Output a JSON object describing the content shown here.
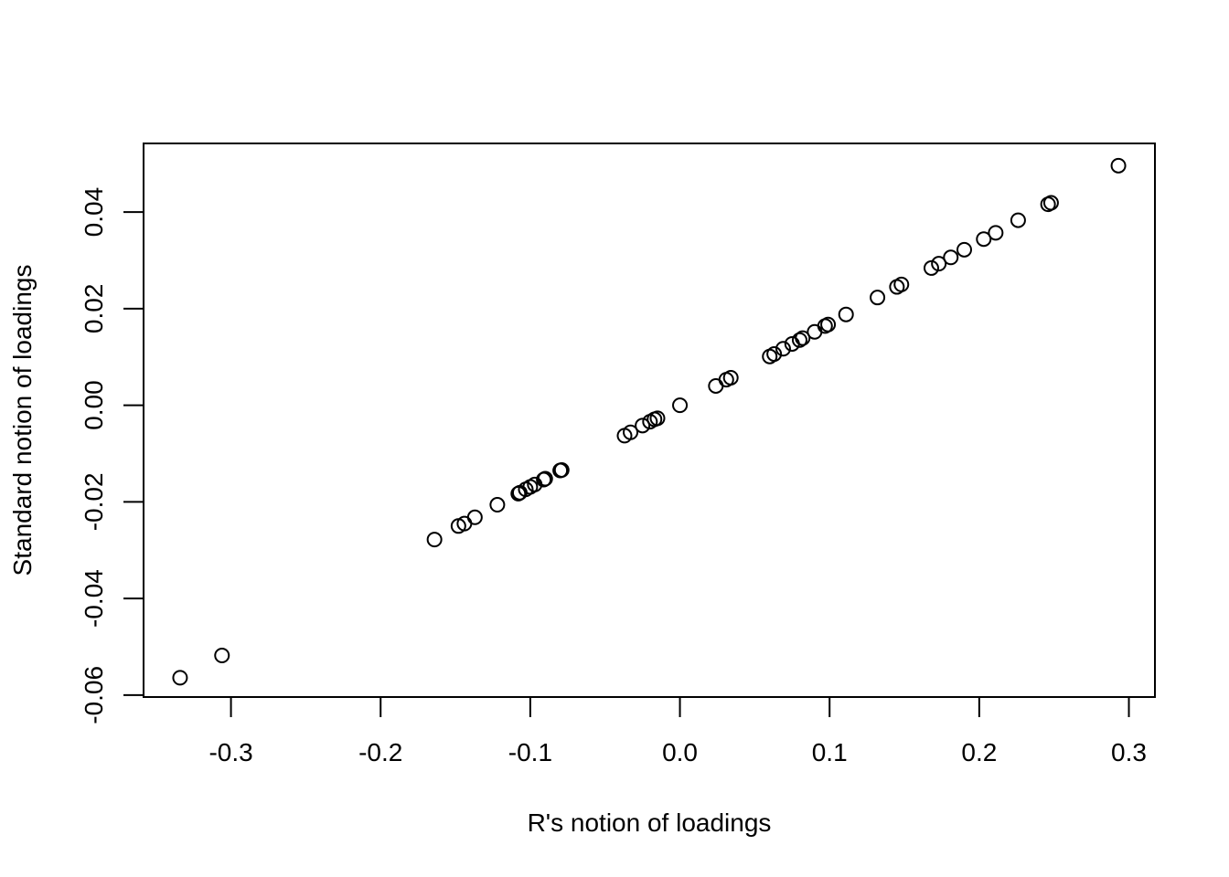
{
  "chart_data": {
    "type": "scatter",
    "title": "",
    "xlabel": "R's notion of loadings",
    "ylabel": "Standard notion of loadings",
    "xlim": [
      -0.3584,
      0.3174
    ],
    "ylim": [
      -0.0604,
      0.0542
    ],
    "x_ticks": [
      -0.3,
      -0.2,
      -0.1,
      0.0,
      0.1,
      0.2,
      0.3
    ],
    "x_tick_labels": [
      "-0.3",
      "-0.2",
      "-0.1",
      "0.0",
      "0.1",
      "0.2",
      "0.3"
    ],
    "y_ticks": [
      -0.06,
      -0.04,
      -0.02,
      0.0,
      0.02,
      0.04
    ],
    "y_tick_labels": [
      "-0.06",
      "-0.04",
      "-0.02",
      "0.00",
      "0.02",
      "0.04"
    ],
    "grid": false,
    "legend": "none",
    "marker": "open-circle",
    "points": [
      {
        "x": -0.334,
        "y": -0.0564
      },
      {
        "x": -0.306,
        "y": -0.0518
      },
      {
        "x": -0.164,
        "y": -0.0278
      },
      {
        "x": -0.148,
        "y": -0.025
      },
      {
        "x": -0.144,
        "y": -0.0245
      },
      {
        "x": -0.137,
        "y": -0.0232
      },
      {
        "x": -0.122,
        "y": -0.0206
      },
      {
        "x": -0.108,
        "y": -0.0183
      },
      {
        "x": -0.107,
        "y": -0.0181
      },
      {
        "x": -0.103,
        "y": -0.0174
      },
      {
        "x": -0.1,
        "y": -0.0169
      },
      {
        "x": -0.097,
        "y": -0.0164
      },
      {
        "x": -0.091,
        "y": -0.0154
      },
      {
        "x": -0.09,
        "y": -0.0152
      },
      {
        "x": -0.08,
        "y": -0.0135
      },
      {
        "x": -0.079,
        "y": -0.0134
      },
      {
        "x": -0.037,
        "y": -0.0063
      },
      {
        "x": -0.033,
        "y": -0.0056
      },
      {
        "x": -0.025,
        "y": -0.0042
      },
      {
        "x": -0.02,
        "y": -0.0034
      },
      {
        "x": -0.017,
        "y": -0.0029
      },
      {
        "x": -0.015,
        "y": -0.0027
      },
      {
        "x": 0.0,
        "y": 0.0
      },
      {
        "x": 0.024,
        "y": 0.004
      },
      {
        "x": 0.031,
        "y": 0.0053
      },
      {
        "x": 0.034,
        "y": 0.0057
      },
      {
        "x": 0.06,
        "y": 0.0101
      },
      {
        "x": 0.063,
        "y": 0.0106
      },
      {
        "x": 0.069,
        "y": 0.0117
      },
      {
        "x": 0.075,
        "y": 0.0127
      },
      {
        "x": 0.08,
        "y": 0.0135
      },
      {
        "x": 0.082,
        "y": 0.0139
      },
      {
        "x": 0.09,
        "y": 0.0152
      },
      {
        "x": 0.097,
        "y": 0.0164
      },
      {
        "x": 0.099,
        "y": 0.0167
      },
      {
        "x": 0.111,
        "y": 0.0188
      },
      {
        "x": 0.132,
        "y": 0.0223
      },
      {
        "x": 0.145,
        "y": 0.0245
      },
      {
        "x": 0.148,
        "y": 0.025
      },
      {
        "x": 0.168,
        "y": 0.0284
      },
      {
        "x": 0.173,
        "y": 0.0293
      },
      {
        "x": 0.181,
        "y": 0.0306
      },
      {
        "x": 0.19,
        "y": 0.0322
      },
      {
        "x": 0.203,
        "y": 0.0344
      },
      {
        "x": 0.211,
        "y": 0.0357
      },
      {
        "x": 0.226,
        "y": 0.0383
      },
      {
        "x": 0.246,
        "y": 0.0416
      },
      {
        "x": 0.248,
        "y": 0.0419
      },
      {
        "x": 0.293,
        "y": 0.0496
      }
    ]
  }
}
